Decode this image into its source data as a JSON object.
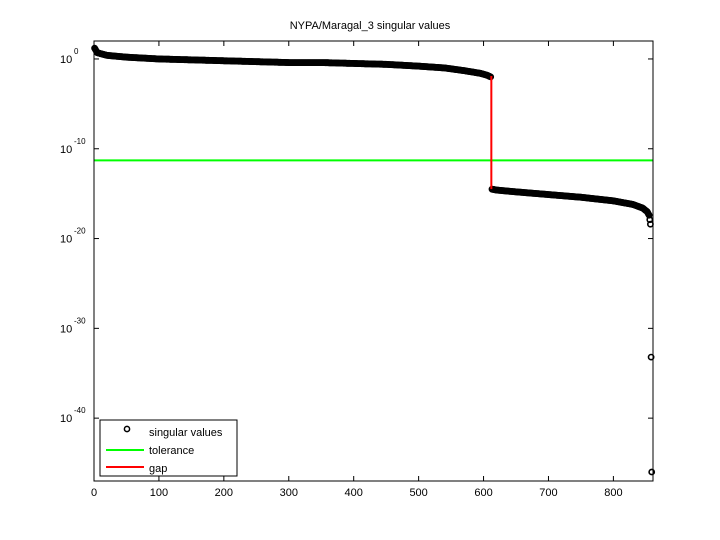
{
  "window": {
    "background": "#ffffff"
  },
  "chart_data": {
    "type": "scatter",
    "title": "NYPA/Maragal_3 singular values",
    "xlabel": "",
    "ylabel": "",
    "yscale": "log",
    "xlim": [
      0,
      861
    ],
    "ylim_log10": [
      2,
      -47
    ],
    "grid": false,
    "legend_position": "lower-left",
    "x_ticks": [
      0,
      100,
      200,
      300,
      400,
      500,
      600,
      700,
      800
    ],
    "x_tick_labels": [
      "0",
      "100",
      "200",
      "300",
      "400",
      "500",
      "600",
      "700",
      "800"
    ],
    "y_ticks_log10": [
      0,
      -10,
      -20,
      -30,
      -40
    ],
    "y_tick_labels": [
      {
        "base": "10",
        "exp": "0"
      },
      {
        "base": "10",
        "exp": "-10"
      },
      {
        "base": "10",
        "exp": "-20"
      },
      {
        "base": "10",
        "exp": "-30"
      },
      {
        "base": "10",
        "exp": "-40"
      }
    ],
    "legend": [
      {
        "label": "singular values",
        "style": "marker-circle",
        "color": "#000000"
      },
      {
        "label": "tolerance",
        "style": "line",
        "color": "#00ff00"
      },
      {
        "label": "gap",
        "style": "line",
        "color": "#ff0000"
      }
    ],
    "series": [
      {
        "name": "singular values",
        "kind": "markers",
        "color": "#000000",
        "points_log10": [
          [
            1,
            1.2
          ],
          [
            5,
            0.7
          ],
          [
            20,
            0.4
          ],
          [
            50,
            0.2
          ],
          [
            100,
            0.0
          ],
          [
            150,
            -0.1
          ],
          [
            200,
            -0.2
          ],
          [
            250,
            -0.3
          ],
          [
            300,
            -0.4
          ],
          [
            350,
            -0.4
          ],
          [
            400,
            -0.5
          ],
          [
            450,
            -0.6
          ],
          [
            500,
            -0.8
          ],
          [
            540,
            -1.0
          ],
          [
            570,
            -1.3
          ],
          [
            595,
            -1.6
          ],
          [
            605,
            -1.8
          ],
          [
            611,
            -2.0
          ],
          [
            613,
            -14.5
          ],
          [
            620,
            -14.6
          ],
          [
            650,
            -14.8
          ],
          [
            700,
            -15.1
          ],
          [
            750,
            -15.4
          ],
          [
            800,
            -15.8
          ],
          [
            830,
            -16.2
          ],
          [
            845,
            -16.6
          ],
          [
            852,
            -17.0
          ],
          [
            855,
            -17.4
          ],
          [
            857,
            -18.4
          ],
          [
            858,
            -33.2
          ],
          [
            859,
            -46.0
          ]
        ]
      },
      {
        "name": "tolerance",
        "kind": "hline",
        "color": "#00ff00",
        "y_log10": -11.3
      },
      {
        "name": "gap",
        "kind": "vline-segment",
        "color": "#ff0000",
        "x": 612,
        "y_top_log10": -1.9,
        "y_bottom_log10": -14.5
      }
    ]
  }
}
